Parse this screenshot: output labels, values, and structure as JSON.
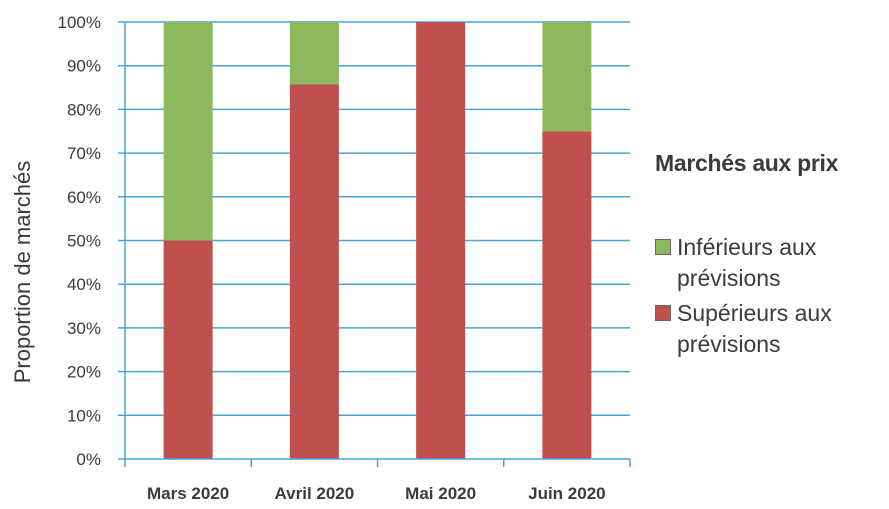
{
  "chart_data": {
    "type": "bar",
    "stacked": true,
    "categories": [
      "Mars 2020",
      "Avril 2020",
      "Mai 2020",
      "Juin 2020"
    ],
    "series": [
      {
        "name": "Supérieurs aux prévisions",
        "color": "#c0504d",
        "values": [
          50,
          85.7,
          100,
          75
        ]
      },
      {
        "name": "Inférieurs aux prévisions",
        "color": "#8db85e",
        "values": [
          50,
          14.3,
          0,
          25
        ]
      }
    ],
    "ylabel": "Proportion de marchés",
    "ylim": [
      0,
      100
    ],
    "yticks": [
      "0%",
      "10%",
      "20%",
      "30%",
      "40%",
      "50%",
      "60%",
      "70%",
      "80%",
      "90%",
      "100%"
    ],
    "grid": true,
    "gridline_color": "#4aa3d8",
    "legend_position": "right"
  },
  "legend": {
    "title": "Marchés aux prix",
    "items": [
      {
        "label": "Inférieurs aux prévisions",
        "color": "#8db85e"
      },
      {
        "label": "Supérieurs aux prévisions",
        "color": "#c0504d"
      }
    ]
  }
}
